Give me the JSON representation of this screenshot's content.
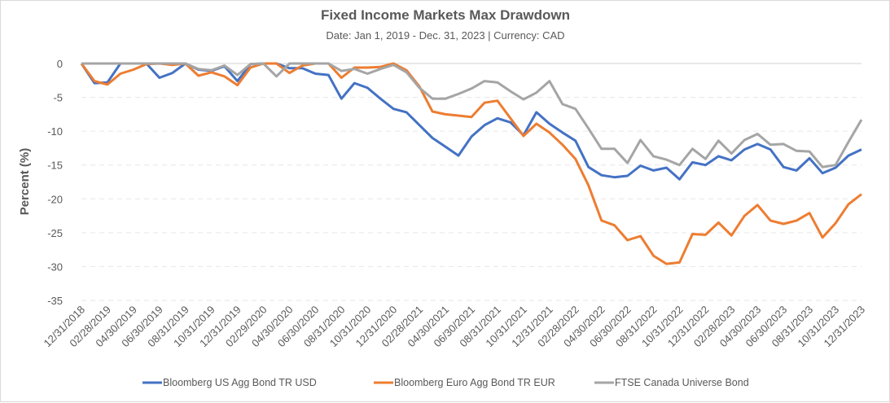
{
  "chart_data": {
    "type": "line",
    "title": "Fixed Income Markets Max Drawdown",
    "subtitle": "Date: Jan 1, 2019 - Dec. 31, 2023 | Currency: CAD",
    "xlabel": "",
    "ylabel": "Percent (%)",
    "ylim": [
      -35,
      0
    ],
    "yticks": [
      0,
      -5,
      -10,
      -15,
      -20,
      -25,
      -30,
      -35
    ],
    "grid": true,
    "legend_position": "bottom",
    "x_start": "12/31/2018",
    "x_end": "12/31/2023",
    "x_frequency": "monthly (month-end)",
    "xtick_labels": [
      "12/31/2018",
      "02/28/2019",
      "04/30/2019",
      "06/30/2019",
      "08/31/2019",
      "10/31/2019",
      "12/31/2019",
      "02/29/2020",
      "04/30/2020",
      "06/30/2020",
      "08/31/2020",
      "10/31/2020",
      "12/31/2020",
      "02/28/2021",
      "04/30/2021",
      "06/30/2021",
      "08/31/2021",
      "10/31/2021",
      "12/31/2021",
      "02/28/2022",
      "04/30/2022",
      "06/30/2022",
      "08/31/2022",
      "10/31/2022",
      "12/31/2022",
      "02/28/2023",
      "04/30/2023",
      "06/30/2023",
      "08/31/2023",
      "10/31/2023",
      "12/31/2023"
    ],
    "series": [
      {
        "name": "Bloomberg US Agg Bond TR USD",
        "color": "#4472c4",
        "values": [
          0,
          -2.9,
          -2.8,
          0,
          0,
          0,
          -2.1,
          -1.4,
          0,
          -0.9,
          -1.1,
          -0.4,
          -2.6,
          -0.1,
          0,
          0,
          -0.7,
          -0.7,
          -1.5,
          -1.7,
          -5.2,
          -2.9,
          -3.6,
          -5.2,
          -6.7,
          -7.2,
          -9.1,
          -11,
          -12.3,
          -13.6,
          -10.8,
          -9.1,
          -8.1,
          -8.7,
          -10.6,
          -7.2,
          -8.9,
          -10.2,
          -11.4,
          -15.3,
          -16.5,
          -16.8,
          -16.6,
          -15.1,
          -15.8,
          -15.4,
          -17.1,
          -14.6,
          -15.0,
          -13.7,
          -14.3,
          -12.7,
          -11.9,
          -12.7,
          -15.3,
          -15.8,
          -14.0,
          -16.2,
          -15.4,
          -13.6,
          -12.7
        ]
      },
      {
        "name": "Bloomberg Euro Agg Bond TR EUR",
        "color": "#ed7d31",
        "values": [
          0,
          -2.6,
          -3.1,
          -1.5,
          -0.9,
          -0.1,
          0,
          -0.2,
          0,
          -1.8,
          -1.3,
          -1.9,
          -3.2,
          -0.6,
          0,
          0,
          -1.4,
          -0.3,
          0,
          0,
          -2.1,
          -0.6,
          -0.6,
          -0.5,
          0,
          -1.0,
          -3.4,
          -7.1,
          -7.5,
          -7.7,
          -7.9,
          -5.8,
          -5.5,
          -8.1,
          -10.7,
          -8.9,
          -10.2,
          -12.0,
          -14.1,
          -18.0,
          -23.2,
          -23.9,
          -26.1,
          -25.5,
          -28.4,
          -29.6,
          -29.4,
          -25.2,
          -25.3,
          -23.5,
          -25.4,
          -22.5,
          -20.9,
          -23.2,
          -23.7,
          -23.2,
          -22.1,
          -25.7,
          -23.6,
          -20.8,
          -19.3
        ]
      },
      {
        "name": "FTSE Canada Universe Bond",
        "color": "#a5a5a5",
        "values": [
          0,
          0,
          0,
          0,
          0,
          0,
          0,
          0,
          0,
          -0.8,
          -1.0,
          -0.3,
          -1.7,
          -0.1,
          0,
          -1.9,
          0,
          0,
          0,
          0,
          -1.1,
          -0.8,
          -1.5,
          -0.8,
          -0.2,
          -1.3,
          -3.6,
          -5.2,
          -5.2,
          -4.5,
          -3.7,
          -2.6,
          -2.8,
          -4.1,
          -5.3,
          -4.3,
          -2.6,
          -6.0,
          -6.7,
          -9.6,
          -12.6,
          -12.6,
          -14.7,
          -11.3,
          -13.7,
          -14.2,
          -15.0,
          -12.6,
          -14.1,
          -11.4,
          -13.3,
          -11.3,
          -10.4,
          -12.0,
          -11.9,
          -12.9,
          -13.0,
          -15.3,
          -15.0,
          -11.6,
          -8.3
        ]
      }
    ]
  }
}
